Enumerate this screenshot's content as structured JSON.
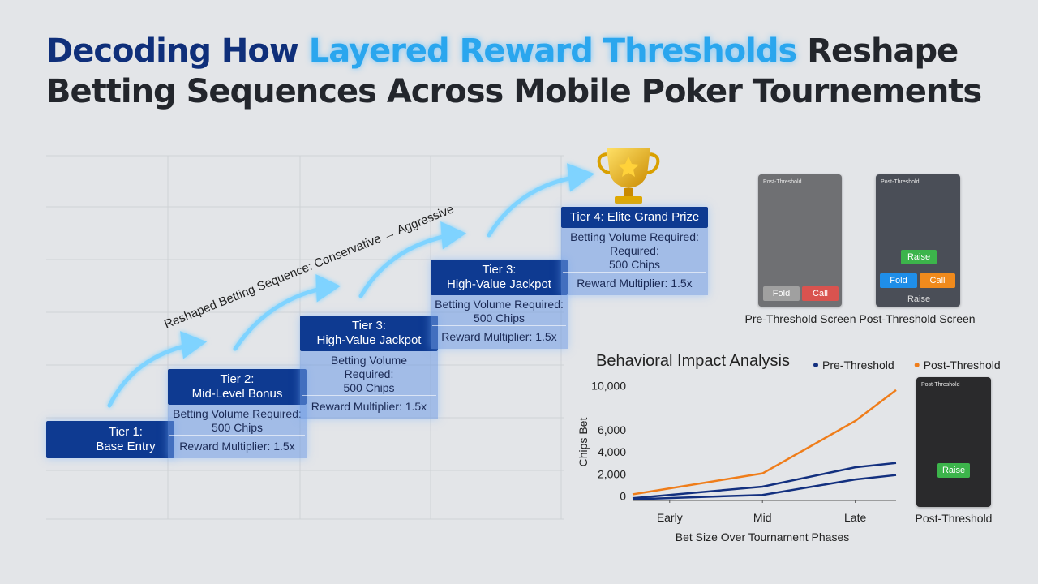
{
  "header": {
    "title_line1": [
      "Decoding How",
      "Layered Reward Thresholds",
      "Reshape"
    ],
    "title_line2": "Betting Sequences Across Mobile Poker Tournements"
  },
  "sequence_label": "Reshaped Betting Sequence: Conservative → Aggressive",
  "tiers": [
    {
      "header": [
        "Tier 1:",
        "Base Entry"
      ]
    },
    {
      "header": [
        "Tier 2:",
        "Mid-Level Bonus"
      ],
      "body": [
        "Betting Volume Required:",
        "500 Chips"
      ],
      "multiplier": "Reward Multiplier: 1.5x"
    },
    {
      "header": [
        "Tier 3:",
        "High-Value Jackpot"
      ],
      "body": [
        "Betting Volume",
        "Required:",
        "500 Chips"
      ],
      "multiplier": "Reward Multiplier: 1.5x"
    },
    {
      "header": [
        "Tier 3:",
        "High-Value Jackpot"
      ],
      "body": [
        "Betting Volume Required:",
        "500 Chips"
      ],
      "multiplier": "Reward Multiplier: 1.5x"
    },
    {
      "header": [
        "Tier 4: Elite Grand Prize"
      ],
      "body": [
        "Betting Volume Required:",
        "Required:",
        "500 Chips"
      ],
      "multiplier": "Reward Multiplier: 1.5x"
    }
  ],
  "screens": [
    {
      "label": "Post-Threshold",
      "buttons": [
        "Fold",
        "Call"
      ],
      "caption": "Pre-Threshold Screen"
    },
    {
      "label": "Post-Threshold",
      "buttons": [
        "Raise",
        "Fold",
        "Call",
        "Raise"
      ],
      "caption": "Post-Threshold Screen"
    },
    {
      "label": "Post-Threshold",
      "buttons": [
        "Raise"
      ],
      "caption": "Post-Threshold"
    }
  ],
  "chart_data": {
    "type": "line",
    "title": "Behavioral Impact Analysis",
    "x_label": "Bet Size Over Tournament Phases",
    "y_label": "Chips Bet",
    "x": [
      -0.4,
      1,
      2,
      2.44
    ],
    "xlim": [
      -0.4,
      2.44
    ],
    "xticks": [
      {
        "value": 0,
        "label": "Early"
      },
      {
        "value": 1,
        "label": "Mid"
      },
      {
        "value": 2,
        "label": "Late"
      }
    ],
    "ylim": [
      -400,
      10400
    ],
    "yticks": [
      0,
      {
        "value": 2000,
        "label": "2,000"
      },
      {
        "value": 4000,
        "label": "4,000"
      },
      {
        "value": 6000,
        "label": "6,000"
      },
      {
        "value": 10000,
        "label": "10,000"
      }
    ],
    "series": [
      {
        "name": "Pre-Threshold",
        "color": "#13307f",
        "values": [
          -200,
          850,
          2600,
          3000
        ]
      },
      {
        "name": "Post-Threshold",
        "color": "#ef7d1a",
        "values": [
          150,
          2050,
          6800,
          9600
        ]
      },
      {
        "color": "#13307f",
        "values": [
          -300,
          100,
          1500,
          1900
        ]
      }
    ]
  }
}
